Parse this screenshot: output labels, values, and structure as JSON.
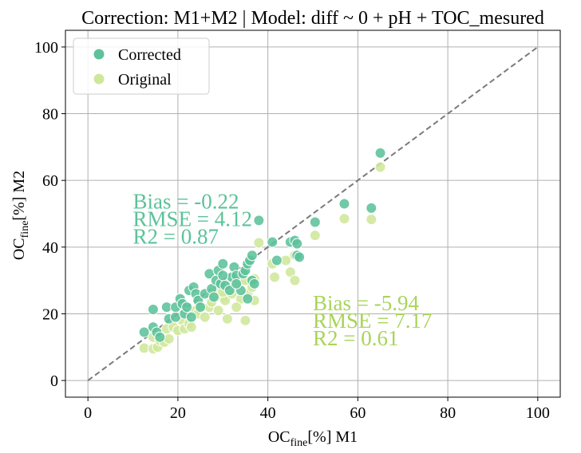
{
  "chart_data": {
    "type": "scatter",
    "title": "Correction: M1+M2 | Model: diff ~ 0 + pH + TOC_mesured",
    "xlabel": {
      "main": "OC",
      "sub": "fine",
      "rest": "[%] M1"
    },
    "ylabel": {
      "main": "OC",
      "sub": "fine",
      "rest": "[%] M2"
    },
    "xlim": [
      -5,
      105
    ],
    "ylim": [
      -5,
      105
    ],
    "xticks": [
      0,
      20,
      40,
      60,
      80,
      100
    ],
    "yticks": [
      0,
      20,
      40,
      60,
      80,
      100
    ],
    "grid": true,
    "legend_position": "top-left",
    "identity_line": {
      "from": [
        0,
        0
      ],
      "to": [
        100,
        100
      ],
      "color": "#7a7a7a",
      "style": "dashed"
    },
    "series": [
      {
        "name": "Corrected",
        "color": "#5cc29b",
        "points": [
          [
            12.5,
            14.5
          ],
          [
            14.5,
            21.3
          ],
          [
            14.5,
            16.0
          ],
          [
            15.3,
            14.5
          ],
          [
            16.0,
            13.0
          ],
          [
            17.5,
            22.0
          ],
          [
            18.0,
            18.5
          ],
          [
            19.5,
            19.0
          ],
          [
            19.5,
            22.0
          ],
          [
            20.5,
            24.5
          ],
          [
            21.0,
            23.0
          ],
          [
            21.5,
            20.0
          ],
          [
            22.0,
            22.0
          ],
          [
            22.5,
            27.0
          ],
          [
            23.0,
            19.0
          ],
          [
            23.5,
            28.0
          ],
          [
            24.0,
            26.0
          ],
          [
            24.5,
            24.0
          ],
          [
            25.0,
            22.0
          ],
          [
            26.0,
            26.0
          ],
          [
            27.0,
            32.0
          ],
          [
            27.5,
            27.5
          ],
          [
            28.0,
            25.0
          ],
          [
            28.5,
            30.0
          ],
          [
            29.0,
            33.0
          ],
          [
            29.5,
            29.0
          ],
          [
            30.0,
            35.0
          ],
          [
            30.5,
            28.5
          ],
          [
            31.5,
            27.0
          ],
          [
            32.0,
            31.0
          ],
          [
            32.5,
            34.0
          ],
          [
            33.0,
            31.5
          ],
          [
            34.0,
            27.0
          ],
          [
            34.5,
            32.0
          ],
          [
            35.0,
            33.0
          ],
          [
            35.5,
            35.0
          ],
          [
            36.0,
            36.0
          ],
          [
            36.5,
            30.0
          ],
          [
            36.5,
            37.5
          ],
          [
            37.0,
            29.0
          ],
          [
            38.0,
            48.0
          ],
          [
            41.0,
            41.5
          ],
          [
            42.0,
            36.0
          ],
          [
            45.0,
            41.5
          ],
          [
            46.0,
            42.0
          ],
          [
            46.5,
            41.0
          ],
          [
            46.5,
            37.5
          ],
          [
            47.0,
            37.0
          ],
          [
            50.5,
            47.5
          ],
          [
            57.0,
            53.0
          ],
          [
            63.0,
            51.7
          ],
          [
            65.0,
            68.2
          ],
          [
            35.5,
            24.5
          ],
          [
            33.0,
            29.0
          ],
          [
            30.0,
            31.5
          ]
        ]
      },
      {
        "name": "Original",
        "color": "#cfe79b",
        "points": [
          [
            12.5,
            9.7
          ],
          [
            14.5,
            9.5
          ],
          [
            14.5,
            13.0
          ],
          [
            15.5,
            10.0
          ],
          [
            16.0,
            12.0
          ],
          [
            17.0,
            11.5
          ],
          [
            17.5,
            15.5
          ],
          [
            18.0,
            12.5
          ],
          [
            19.0,
            16.0
          ],
          [
            20.0,
            15.0
          ],
          [
            21.0,
            18.0
          ],
          [
            21.5,
            15.5
          ],
          [
            22.0,
            20.0
          ],
          [
            22.5,
            17.0
          ],
          [
            23.0,
            16.0
          ],
          [
            24.0,
            21.0
          ],
          [
            24.5,
            20.0
          ],
          [
            25.0,
            22.5
          ],
          [
            26.0,
            19.0
          ],
          [
            27.0,
            22.0
          ],
          [
            27.5,
            23.5
          ],
          [
            28.0,
            25.5
          ],
          [
            28.5,
            27.0
          ],
          [
            29.0,
            21.0
          ],
          [
            30.0,
            25.0
          ],
          [
            30.5,
            24.0
          ],
          [
            31.0,
            18.5
          ],
          [
            31.5,
            28.0
          ],
          [
            32.0,
            26.0
          ],
          [
            33.0,
            30.0
          ],
          [
            33.5,
            29.0
          ],
          [
            34.0,
            24.5
          ],
          [
            35.0,
            18.0
          ],
          [
            35.5,
            26.0
          ],
          [
            36.0,
            29.5
          ],
          [
            36.5,
            28.0
          ],
          [
            37.0,
            24.0
          ],
          [
            37.0,
            30.5
          ],
          [
            38.0,
            41.3
          ],
          [
            41.0,
            35.0
          ],
          [
            41.5,
            31.0
          ],
          [
            44.0,
            36.0
          ],
          [
            45.0,
            32.5
          ],
          [
            46.0,
            30.0
          ],
          [
            46.0,
            37.5
          ],
          [
            50.5,
            43.5
          ],
          [
            57.0,
            48.5
          ],
          [
            63.0,
            48.3
          ],
          [
            65.0,
            64.0
          ],
          [
            35.0,
            30.0
          ],
          [
            33.0,
            22.0
          ],
          [
            30.0,
            26.5
          ]
        ]
      }
    ],
    "annotations": [
      {
        "lines": [
          "Bias = -0.22",
          "RMSE = 4.12",
          "R2 = 0.87"
        ],
        "color": "#5cc29b",
        "x": 10,
        "y": 41
      },
      {
        "lines": [
          "Bias = -5.94",
          "RMSE = 7.17",
          "R2 = 0.61"
        ],
        "color": "#a9d45a",
        "x": 50,
        "y": 10.5
      }
    ]
  }
}
